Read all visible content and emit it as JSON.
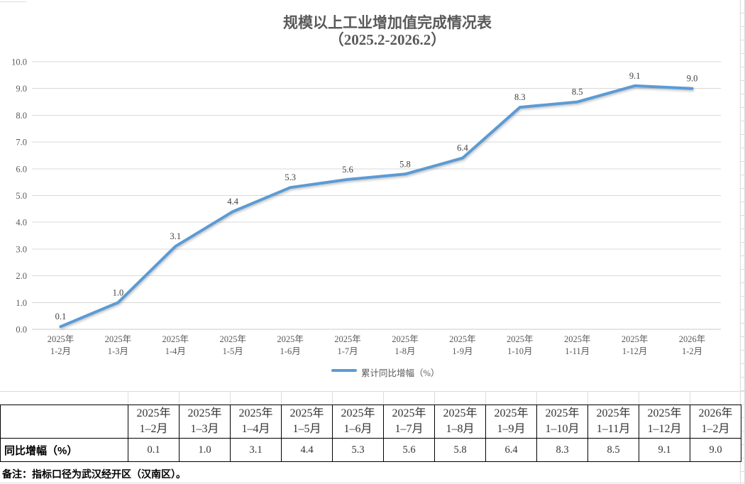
{
  "sheet": {
    "note": "备注：指标口径为武汉经开区（汉南区）。"
  },
  "chart_data": {
    "type": "line",
    "title_lines": [
      "规模以上工业增加值完成情况表",
      "（2025.2-2026.2）"
    ],
    "title": "规模以上工业增加值完成情况表（2025.2-2026.2）",
    "categories": [
      [
        "2025年",
        "1-2月"
      ],
      [
        "2025年",
        "1-3月"
      ],
      [
        "2025年",
        "1-4月"
      ],
      [
        "2025年",
        "1-5月"
      ],
      [
        "2025年",
        "1-6月"
      ],
      [
        "2025年",
        "1-7月"
      ],
      [
        "2025年",
        "1-8月"
      ],
      [
        "2025年",
        "1-9月"
      ],
      [
        "2025年",
        "1-10月"
      ],
      [
        "2025年",
        "1-11月"
      ],
      [
        "2025年",
        "1-12月"
      ],
      [
        "2026年",
        "1-2月"
      ]
    ],
    "series": [
      {
        "name": "累计同比增幅（%）",
        "values": [
          0.1,
          1.0,
          3.1,
          4.4,
          5.3,
          5.6,
          5.8,
          6.4,
          8.3,
          8.5,
          9.1,
          9.0
        ]
      }
    ],
    "data_labels": [
      "0.1",
      "1.0",
      "3.1",
      "4.4",
      "5.3",
      "5.6",
      "5.8",
      "6.4",
      "8.3",
      "8.5",
      "9.1",
      "9.0"
    ],
    "ylim": [
      0,
      10
    ],
    "ytick_step": 1,
    "ytick_labels": [
      "0.0",
      "1.0",
      "2.0",
      "3.0",
      "4.0",
      "5.0",
      "6.0",
      "7.0",
      "8.0",
      "9.0",
      "10.0"
    ],
    "grid": true,
    "legend_position": "bottom",
    "colors": {
      "line": "#5B9BD5",
      "grid": "#D9D9D9",
      "axis_text": "#595959",
      "title_text": "#595959",
      "label_text": "#404040"
    }
  },
  "table": {
    "row_label": "同比增幅（%）",
    "columns": [
      [
        "2025年",
        "1–2月"
      ],
      [
        "2025年",
        "1–3月"
      ],
      [
        "2025年",
        "1–4月"
      ],
      [
        "2025年",
        "1–5月"
      ],
      [
        "2025年",
        "1–6月"
      ],
      [
        "2025年",
        "1–7月"
      ],
      [
        "2025年",
        "1–8月"
      ],
      [
        "2025年",
        "1–9月"
      ],
      [
        "2025年",
        "1–10月"
      ],
      [
        "2025年",
        "1–11月"
      ],
      [
        "2025年",
        "1–12月"
      ],
      [
        "2026年",
        "1–2月"
      ]
    ],
    "values": [
      "0.1",
      "1.0",
      "3.1",
      "4.4",
      "5.3",
      "5.6",
      "5.8",
      "6.4",
      "8.3",
      "8.5",
      "9.1",
      "9.0"
    ]
  }
}
